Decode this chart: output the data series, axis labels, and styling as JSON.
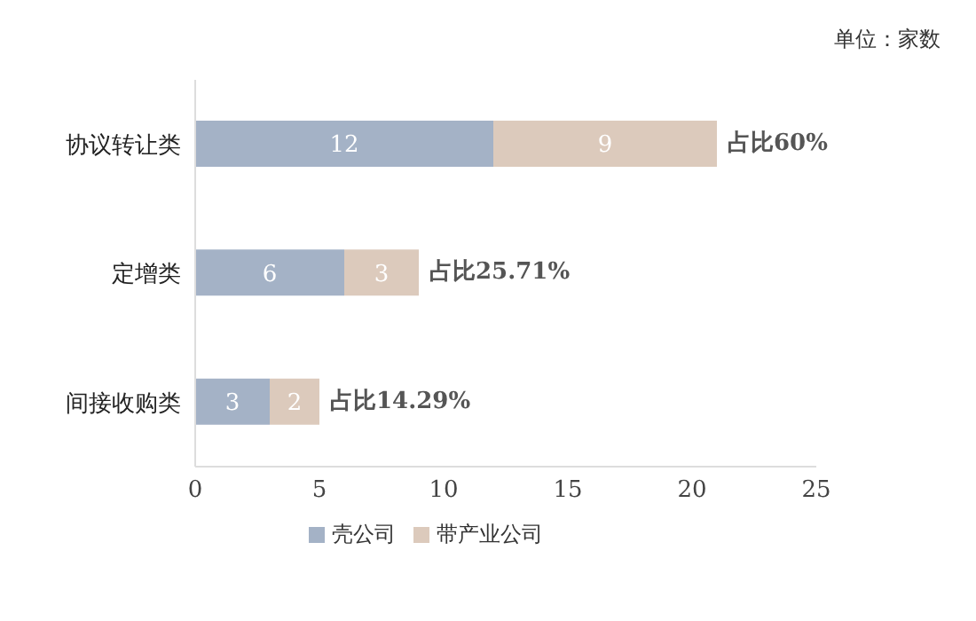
{
  "chart_data": {
    "type": "bar",
    "orientation": "horizontal",
    "stacked": true,
    "categories": [
      "协议转让类",
      "定增类",
      "间接收购类"
    ],
    "series": [
      {
        "name": "壳公司",
        "color": "#a4b2c6",
        "values": [
          12,
          6,
          3
        ]
      },
      {
        "name": "带产业公司",
        "color": "#dccabc",
        "values": [
          9,
          3,
          2
        ]
      }
    ],
    "xlim": [
      0,
      25
    ],
    "xticks": [
      0,
      5,
      10,
      15,
      20,
      25
    ],
    "grid": false,
    "legend": "bottom",
    "data_labels": true,
    "totals": [
      "占比60%",
      "占比25.71%",
      "占比14.29%"
    ],
    "annotations": [
      "单位：家数"
    ]
  }
}
